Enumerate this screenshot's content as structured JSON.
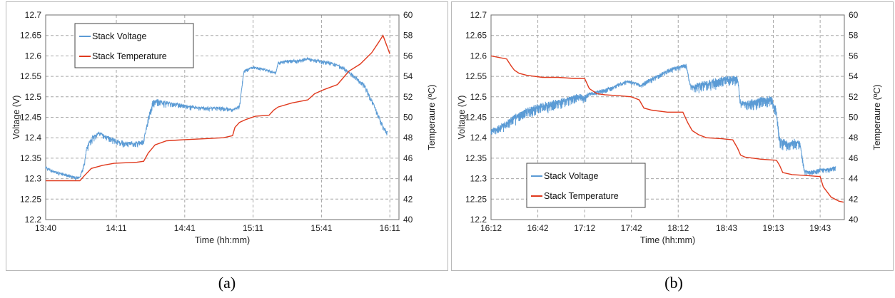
{
  "captions": {
    "a": "(a)",
    "b": "(b)"
  },
  "chart_data": [
    {
      "type": "line",
      "id": "a",
      "xlabel": "Time (hh:mm)",
      "ylabel": "Voltage (V)",
      "y2label": "Temperaure (ºC)",
      "x_ticks": [
        "13:40",
        "14:11",
        "14:41",
        "15:11",
        "15:41",
        "16:11"
      ],
      "ylim": [
        12.2,
        12.7
      ],
      "y_ticks": [
        "12.2",
        "12.25",
        "12.3",
        "12.35",
        "12.4",
        "12.45",
        "12.5",
        "12.55",
        "12.6",
        "12.65",
        "12.7"
      ],
      "y2lim": [
        40,
        60
      ],
      "y2_ticks": [
        "40",
        "42",
        "44",
        "46",
        "48",
        "50",
        "52",
        "54",
        "56",
        "58",
        "60"
      ],
      "grid": true,
      "legend_position": "top-left",
      "series": [
        {
          "name": "Stack Voltage",
          "axis": "left",
          "color": "#5b9bd5",
          "x": [
            "13:40",
            "13:43",
            "13:46",
            "13:50",
            "13:53",
            "13:55",
            "13:57",
            "13:58",
            "14:00",
            "14:03",
            "14:07",
            "14:11",
            "14:15",
            "14:19",
            "14:23",
            "14:25",
            "14:27",
            "14:29",
            "14:32",
            "14:37",
            "14:42",
            "14:48",
            "14:53",
            "14:58",
            "15:02",
            "15:05",
            "15:07",
            "15:11",
            "15:15",
            "15:18",
            "15:21",
            "15:22",
            "15:26",
            "15:30",
            "15:35",
            "15:40",
            "15:45",
            "15:50",
            "15:55",
            "16:00",
            "16:05",
            "16:08",
            "16:10"
          ],
          "values": [
            12.33,
            12.32,
            12.315,
            12.31,
            12.305,
            12.305,
            12.34,
            12.38,
            12.4,
            12.415,
            12.405,
            12.395,
            12.39,
            12.39,
            12.395,
            12.45,
            12.49,
            12.495,
            12.49,
            12.485,
            12.48,
            12.475,
            12.475,
            12.475,
            12.47,
            12.48,
            12.565,
            12.575,
            12.57,
            12.565,
            12.56,
            12.585,
            12.59,
            12.59,
            12.595,
            12.59,
            12.585,
            12.575,
            12.555,
            12.53,
            12.47,
            12.43,
            12.415
          ],
          "noise": [
            0.012,
            0.012,
            0.012,
            0.012,
            0.012,
            0.012,
            0.02,
            0.03,
            0.03,
            0.025,
            0.025,
            0.025,
            0.025,
            0.025,
            0.025,
            0.03,
            0.035,
            0.035,
            0.03,
            0.02,
            0.02,
            0.018,
            0.018,
            0.018,
            0.018,
            0.018,
            0.015,
            0.012,
            0.012,
            0.012,
            0.012,
            0.015,
            0.015,
            0.015,
            0.015,
            0.015,
            0.015,
            0.015,
            0.018,
            0.02,
            0.025,
            0.02,
            0.02
          ]
        },
        {
          "name": "Stack Temperature",
          "axis": "right",
          "color": "#e03a1e",
          "x": [
            "13:40",
            "13:50",
            "13:55",
            "13:57",
            "14:00",
            "14:05",
            "14:10",
            "14:20",
            "14:23",
            "14:25",
            "14:28",
            "14:33",
            "14:40",
            "14:50",
            "14:58",
            "15:02",
            "15:03",
            "15:05",
            "15:08",
            "15:12",
            "15:18",
            "15:20",
            "15:22",
            "15:28",
            "15:35",
            "15:38",
            "15:42",
            "15:48",
            "15:53",
            "15:58",
            "16:03",
            "16:06",
            "16:08",
            "16:10",
            "16:11"
          ],
          "values": [
            43.8,
            43.8,
            43.8,
            44.3,
            45.0,
            45.3,
            45.5,
            45.6,
            45.7,
            46.5,
            47.3,
            47.7,
            47.8,
            47.9,
            48.0,
            48.2,
            49.0,
            49.5,
            49.8,
            50.1,
            50.2,
            50.7,
            51.0,
            51.4,
            51.7,
            52.3,
            52.7,
            53.2,
            54.5,
            55.2,
            56.3,
            57.3,
            58.0,
            56.8,
            56.2
          ]
        }
      ]
    },
    {
      "type": "line",
      "id": "b",
      "xlabel": "Time (hh:mm)",
      "ylabel": "Voltage (V)",
      "y2label": "Temperaure (ºC)",
      "x_ticks": [
        "16:12",
        "16:42",
        "17:12",
        "17:42",
        "18:12",
        "18:43",
        "19:13",
        "19:43"
      ],
      "ylim": [
        12.2,
        12.7
      ],
      "y_ticks": [
        "12.2",
        "12.25",
        "12.3",
        "12.35",
        "12.4",
        "12.45",
        "12.5",
        "12.55",
        "12.6",
        "12.65",
        "12.7"
      ],
      "y2lim": [
        40,
        60
      ],
      "y2_ticks": [
        "40",
        "42",
        "44",
        "46",
        "48",
        "50",
        "52",
        "54",
        "56",
        "58",
        "60"
      ],
      "grid": true,
      "legend_position": "bottom-left",
      "series": [
        {
          "name": "Stack Voltage",
          "axis": "left",
          "color": "#5b9bd5",
          "x": [
            "16:12",
            "16:17",
            "16:22",
            "16:27",
            "16:32",
            "16:37",
            "16:42",
            "16:47",
            "16:52",
            "16:57",
            "17:02",
            "17:07",
            "17:12",
            "17:15",
            "17:20",
            "17:25",
            "17:30",
            "17:35",
            "17:40",
            "17:45",
            "17:48",
            "17:52",
            "17:57",
            "18:02",
            "18:07",
            "18:12",
            "18:17",
            "18:20",
            "18:22",
            "18:27",
            "18:32",
            "18:37",
            "18:42",
            "18:47",
            "18:50",
            "18:52",
            "18:57",
            "19:02",
            "19:07",
            "19:12",
            "19:15",
            "19:17",
            "19:22",
            "19:27",
            "19:30",
            "19:33",
            "19:38",
            "19:43",
            "19:48",
            "19:53"
          ],
          "values": [
            12.42,
            12.43,
            12.44,
            12.455,
            12.465,
            12.475,
            12.48,
            12.485,
            12.49,
            12.495,
            12.5,
            12.505,
            12.505,
            12.51,
            12.515,
            12.52,
            12.525,
            12.535,
            12.54,
            12.535,
            12.53,
            12.54,
            12.55,
            12.56,
            12.57,
            12.575,
            12.58,
            12.53,
            12.53,
            12.535,
            12.54,
            12.545,
            12.55,
            12.55,
            12.55,
            12.49,
            12.49,
            12.495,
            12.5,
            12.5,
            12.47,
            12.4,
            12.39,
            12.395,
            12.39,
            12.32,
            12.32,
            12.325,
            12.325,
            12.33
          ],
          "noise": [
            0.03,
            0.035,
            0.04,
            0.045,
            0.045,
            0.045,
            0.045,
            0.045,
            0.045,
            0.045,
            0.04,
            0.04,
            0.04,
            0.02,
            0.02,
            0.02,
            0.018,
            0.015,
            0.015,
            0.015,
            0.018,
            0.02,
            0.02,
            0.02,
            0.02,
            0.02,
            0.02,
            0.025,
            0.04,
            0.045,
            0.045,
            0.045,
            0.045,
            0.045,
            0.04,
            0.04,
            0.045,
            0.045,
            0.045,
            0.045,
            0.04,
            0.045,
            0.045,
            0.045,
            0.04,
            0.02,
            0.02,
            0.02,
            0.02,
            0.02
          ]
        },
        {
          "name": "Stack Temperature",
          "axis": "right",
          "color": "#e03a1e",
          "x": [
            "16:12",
            "16:22",
            "16:25",
            "16:27",
            "16:30",
            "16:35",
            "16:45",
            "16:55",
            "17:05",
            "17:12",
            "17:15",
            "17:20",
            "17:25",
            "17:35",
            "17:42",
            "17:47",
            "17:50",
            "17:55",
            "18:05",
            "18:15",
            "18:18",
            "18:21",
            "18:25",
            "18:30",
            "18:40",
            "18:47",
            "18:50",
            "18:52",
            "18:55",
            "19:05",
            "19:15",
            "19:17",
            "19:19",
            "19:25",
            "19:35",
            "19:43",
            "19:45",
            "19:50",
            "19:55",
            "19:58"
          ],
          "values": [
            56.0,
            55.7,
            55.0,
            54.6,
            54.3,
            54.1,
            53.9,
            53.9,
            53.8,
            53.8,
            52.8,
            52.3,
            52.2,
            52.1,
            52.0,
            51.7,
            50.9,
            50.7,
            50.5,
            50.5,
            49.5,
            48.7,
            48.3,
            48.0,
            47.9,
            47.8,
            47.0,
            46.3,
            46.1,
            45.9,
            45.8,
            45.3,
            44.6,
            44.4,
            44.3,
            44.2,
            43.2,
            42.2,
            41.8,
            41.7
          ]
        }
      ]
    }
  ]
}
